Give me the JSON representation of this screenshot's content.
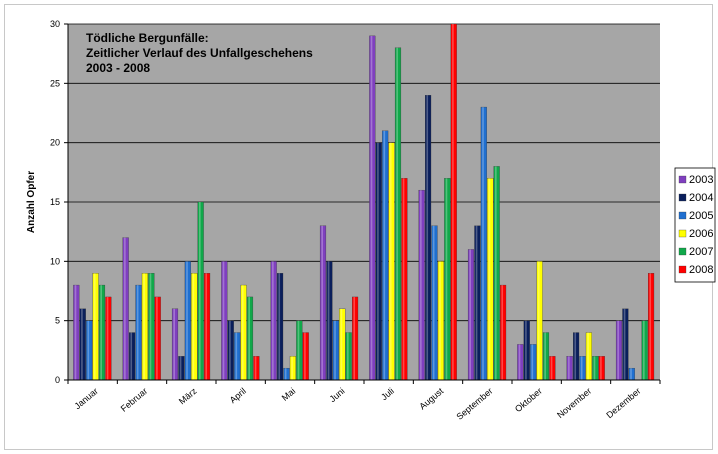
{
  "chart_data": {
    "type": "bar",
    "title": [
      "Tödliche Bergunfälle:",
      "Zeitlicher Verlauf des Unfallgeschehens",
      "2003 - 2008"
    ],
    "xlabel": "",
    "ylabel": "Anzahl Opfer",
    "ylim": [
      0,
      30
    ],
    "yticks": [
      0,
      5,
      10,
      15,
      20,
      25,
      30
    ],
    "grid": true,
    "legend_position": "right",
    "background_color": "#a6a6a6",
    "categories": [
      "Januar",
      "Februar",
      "März",
      "April",
      "Mai",
      "Juni",
      "Juli",
      "August",
      "September",
      "Oktober",
      "November",
      "Dezember"
    ],
    "series": [
      {
        "name": "2003",
        "color": "#7f3fbf",
        "values": [
          8,
          12,
          6,
          10,
          10,
          13,
          29,
          16,
          11,
          3,
          2,
          5
        ]
      },
      {
        "name": "2004",
        "color": "#0a1f5c",
        "values": [
          6,
          4,
          2,
          5,
          9,
          10,
          20,
          24,
          13,
          5,
          4,
          6
        ]
      },
      {
        "name": "2005",
        "color": "#1f6fd0",
        "values": [
          5,
          8,
          10,
          4,
          1,
          5,
          21,
          13,
          23,
          3,
          2,
          1
        ]
      },
      {
        "name": "2006",
        "color": "#ffff00",
        "values": [
          9,
          9,
          9,
          8,
          2,
          6,
          20,
          10,
          17,
          10,
          4,
          0
        ]
      },
      {
        "name": "2007",
        "color": "#10a84a",
        "values": [
          8,
          9,
          15,
          7,
          5,
          4,
          28,
          17,
          18,
          4,
          2,
          5
        ]
      },
      {
        "name": "2008",
        "color": "#ff0000",
        "values": [
          7,
          7,
          9,
          2,
          4,
          7,
          17,
          30,
          8,
          2,
          2,
          9
        ]
      }
    ]
  }
}
